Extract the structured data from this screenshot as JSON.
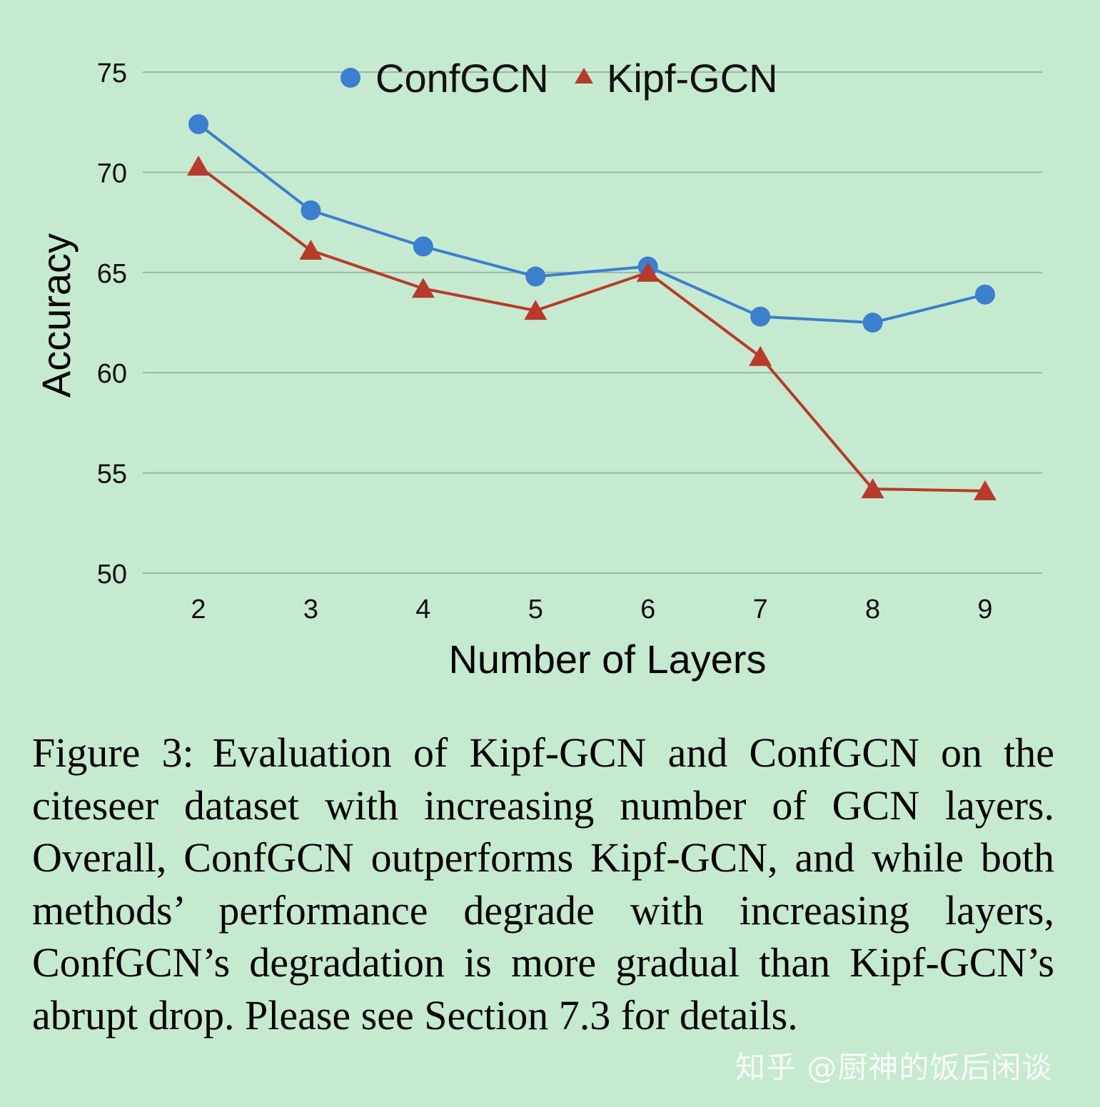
{
  "chart_data": {
    "type": "line",
    "xlabel": "Number of Layers",
    "ylabel": "Accuracy",
    "x": [
      2,
      3,
      4,
      5,
      6,
      7,
      8,
      9
    ],
    "ylim": [
      50,
      75
    ],
    "yticks": [
      50,
      55,
      60,
      65,
      70,
      75
    ],
    "grid": true,
    "legend_position": "top",
    "series": [
      {
        "name": "ConfGCN",
        "marker": "circle",
        "color": "#3d7fcf",
        "values": [
          72.4,
          68.1,
          66.3,
          64.8,
          65.3,
          62.8,
          62.5,
          63.9
        ]
      },
      {
        "name": "Kipf-GCN",
        "marker": "triangle",
        "color": "#b83a2a",
        "values": [
          70.3,
          66.1,
          64.2,
          63.1,
          65.0,
          60.8,
          54.2,
          54.1
        ]
      }
    ]
  },
  "caption": {
    "label": "Figure 3:",
    "text": "Evaluation of Kipf-GCN and ConfGCN on the citeseer dataset with increasing number of GCN layers. Overall, ConfGCN outperforms Kipf-GCN, and while both methods’ performance degrade with increas­ing layers, ConfGCN’s degradation is more gradual than Kipf-GCN’s abrupt drop. Please see Section 7.3 for details."
  },
  "watermark": "知乎 @厨神的饭后闲谈"
}
